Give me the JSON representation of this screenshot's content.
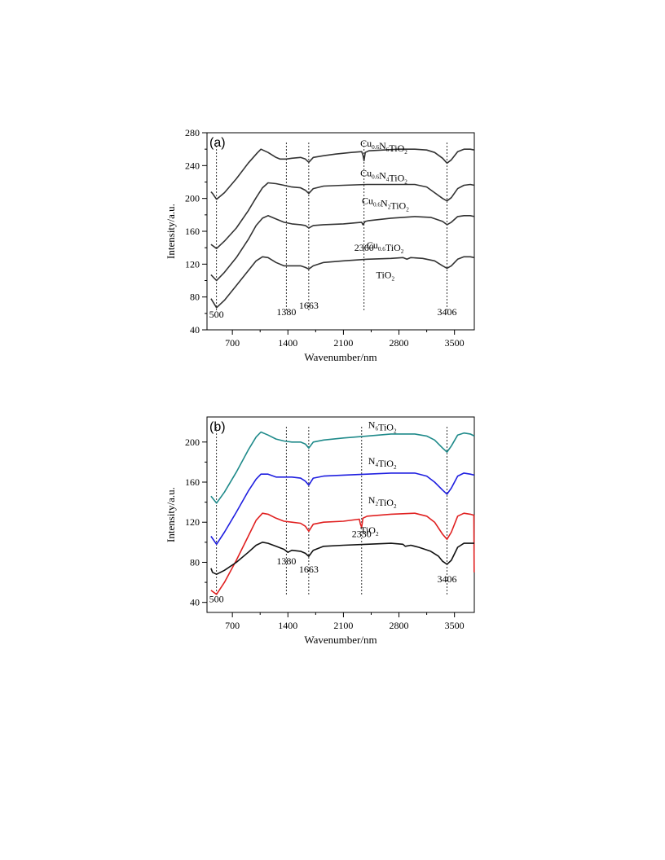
{
  "chart_data": [
    {
      "type": "line",
      "panel_label": "(a)",
      "xlabel": "Wavenumber/nm",
      "ylabel": "Intensity/a.u.",
      "xlim": [
        380,
        3750
      ],
      "ylim": [
        40,
        280
      ],
      "xticks": [
        700,
        1400,
        2100,
        2800,
        3500
      ],
      "yticks": [
        40,
        80,
        120,
        160,
        200,
        240,
        280
      ],
      "grid": false,
      "line_color": "#333333",
      "reference_lines": [
        500,
        1380,
        1663,
        2360,
        3406
      ],
      "peak_labels": [
        {
          "text": "500",
          "x": 500,
          "y": 55
        },
        {
          "text": "1380",
          "x": 1380,
          "y": 58
        },
        {
          "text": "1663",
          "x": 1663,
          "y": 66
        },
        {
          "text": "2360",
          "x": 2360,
          "y": 136
        },
        {
          "text": "3406",
          "x": 3406,
          "y": 58
        }
      ],
      "series": [
        {
          "name_parts": [
            [
              "Cu",
              ""
            ],
            [
              "0.6",
              "sub"
            ],
            [
              "N",
              ""
            ],
            [
              "6",
              "sub"
            ],
            [
              "TiO",
              ""
            ],
            [
              "2",
              "sub"
            ]
          ],
          "label_x": 2600,
          "label_y": 263,
          "x": [
            430,
            450,
            500,
            600,
            750,
            900,
            1010,
            1060,
            1150,
            1250,
            1300,
            1380,
            1450,
            1560,
            1620,
            1663,
            1720,
            1850,
            2000,
            2200,
            2330,
            2345,
            2360,
            2375,
            2420,
            2600,
            2800,
            2900,
            3000,
            3150,
            3250,
            3350,
            3406,
            3460,
            3540,
            3620,
            3700,
            3750
          ],
          "y": [
            208,
            206,
            199,
            207,
            224,
            243,
            255,
            260,
            256,
            250,
            248,
            248,
            249,
            250,
            248,
            244,
            250,
            252,
            254,
            256,
            257,
            253,
            246,
            256,
            258,
            259,
            260,
            260,
            260,
            259,
            256,
            249,
            243,
            247,
            257,
            260,
            260,
            259
          ]
        },
        {
          "name_parts": [
            [
              "Cu",
              ""
            ],
            [
              "0.6",
              "sub"
            ],
            [
              "N",
              ""
            ],
            [
              "4",
              "sub"
            ],
            [
              "TiO",
              ""
            ],
            [
              "2",
              "sub"
            ]
          ],
          "label_x": 2600,
          "label_y": 227,
          "x": [
            430,
            500,
            600,
            750,
            900,
            1000,
            1080,
            1150,
            1250,
            1350,
            1450,
            1560,
            1620,
            1663,
            1720,
            1850,
            2100,
            2400,
            2700,
            3000,
            3150,
            3250,
            3350,
            3406,
            3460,
            3540,
            3620,
            3700,
            3750
          ],
          "y": [
            144,
            139,
            148,
            164,
            185,
            201,
            213,
            219,
            218,
            216,
            214,
            213,
            210,
            206,
            212,
            215,
            216,
            217,
            217,
            217,
            214,
            207,
            200,
            197,
            201,
            212,
            216,
            217,
            216
          ]
        },
        {
          "name_parts": [
            [
              "Cu",
              ""
            ],
            [
              "0.6",
              "sub"
            ],
            [
              "N",
              ""
            ],
            [
              "2",
              "sub"
            ],
            [
              "TiO",
              ""
            ],
            [
              "2",
              "sub"
            ]
          ],
          "label_x": 2620,
          "label_y": 193,
          "x": [
            430,
            500,
            600,
            750,
            900,
            1000,
            1080,
            1150,
            1250,
            1350,
            1450,
            1560,
            1620,
            1663,
            1720,
            1850,
            2100,
            2330,
            2345,
            2360,
            2375,
            2420,
            2700,
            3000,
            3200,
            3350,
            3406,
            3460,
            3540,
            3620,
            3700,
            3750
          ],
          "y": [
            107,
            100,
            110,
            128,
            150,
            167,
            176,
            179,
            175,
            171,
            169,
            168,
            167,
            164,
            167,
            168,
            169,
            171,
            168,
            170,
            172,
            173,
            176,
            178,
            177,
            172,
            168,
            171,
            178,
            179,
            179,
            178
          ]
        },
        {
          "name_parts": [
            [
              "Cu",
              ""
            ],
            [
              "0.6",
              "sub"
            ],
            [
              "TiO",
              ""
            ],
            [
              "2",
              "sub"
            ]
          ],
          "label_x": 2680,
          "label_y": 139,
          "x": [
            430,
            500,
            600,
            750,
            900,
            1000,
            1080,
            1150,
            1250,
            1350,
            1450,
            1560,
            1620,
            1663,
            1720,
            1850,
            2100,
            2400,
            2700,
            2850,
            2900,
            2950,
            3100,
            3250,
            3350,
            3406,
            3460,
            3540,
            3620,
            3700,
            3750
          ],
          "y": [
            78,
            67,
            76,
            94,
            112,
            124,
            129,
            128,
            122,
            118,
            118,
            118,
            116,
            114,
            118,
            122,
            124,
            126,
            127,
            128,
            126,
            128,
            127,
            124,
            118,
            115,
            118,
            126,
            129,
            129,
            128
          ]
        },
        {
          "name_parts": [
            [
              "TiO",
              ""
            ],
            [
              "2",
              "sub"
            ]
          ],
          "label_x": 2800,
          "label_y": 103,
          "x": [],
          "y": []
        }
      ]
    },
    {
      "type": "line",
      "panel_label": "(b)",
      "xlabel": "Wavenumber/nm",
      "ylabel": "Intensity/a.u.",
      "xlim": [
        380,
        3750
      ],
      "ylim": [
        30,
        225
      ],
      "xticks": [
        700,
        1400,
        2100,
        2800,
        3500
      ],
      "yticks": [
        40,
        80,
        120,
        160,
        200
      ],
      "grid": false,
      "reference_lines": [
        500,
        1380,
        1663,
        2330,
        3406
      ],
      "peak_labels": [
        {
          "text": "500",
          "x": 500,
          "y": 40
        },
        {
          "text": "1380",
          "x": 1380,
          "y": 78
        },
        {
          "text": "1663",
          "x": 1663,
          "y": 70
        },
        {
          "text": "2330",
          "x": 2330,
          "y": 105
        },
        {
          "text": "3406",
          "x": 3406,
          "y": 60
        }
      ],
      "series": [
        {
          "name_parts": [
            [
              "N",
              ""
            ],
            [
              "6",
              "sub"
            ],
            [
              "TiO",
              ""
            ],
            [
              "2",
              "sub"
            ]
          ],
          "label_x": 2700,
          "label_y": 214,
          "color": "#1f8a8a",
          "x": [
            430,
            500,
            600,
            750,
            900,
            1000,
            1060,
            1150,
            1250,
            1350,
            1450,
            1560,
            1620,
            1663,
            1720,
            1850,
            2100,
            2400,
            2700,
            3000,
            3150,
            3250,
            3350,
            3406,
            3460,
            3540,
            3620,
            3700,
            3750
          ],
          "y": [
            146,
            139,
            150,
            170,
            192,
            205,
            210,
            207,
            203,
            201,
            200,
            200,
            198,
            194,
            200,
            202,
            204,
            206,
            208,
            208,
            206,
            202,
            194,
            190,
            196,
            207,
            209,
            208,
            206
          ]
        },
        {
          "name_parts": [
            [
              "N",
              ""
            ],
            [
              "4",
              "sub"
            ],
            [
              "TiO",
              ""
            ],
            [
              "2",
              "sub"
            ]
          ],
          "label_x": 2700,
          "label_y": 178,
          "color": "#1f1fe0",
          "x": [
            430,
            500,
            600,
            750,
            900,
            1000,
            1060,
            1150,
            1250,
            1350,
            1450,
            1560,
            1620,
            1663,
            1720,
            1850,
            2100,
            2400,
            2700,
            3000,
            3150,
            3250,
            3350,
            3406,
            3460,
            3540,
            3620,
            3700,
            3750
          ],
          "y": [
            106,
            98,
            110,
            130,
            151,
            163,
            168,
            168,
            165,
            165,
            165,
            164,
            161,
            157,
            164,
            166,
            167,
            168,
            169,
            169,
            166,
            160,
            152,
            148,
            154,
            166,
            169,
            168,
            167
          ]
        },
        {
          "name_parts": [
            [
              "N",
              ""
            ],
            [
              "2",
              "sub"
            ],
            [
              "TiO",
              ""
            ],
            [
              "2",
              "sub"
            ]
          ],
          "label_x": 2700,
          "label_y": 139,
          "color": "#e02020",
          "x": [
            430,
            500,
            600,
            750,
            900,
            1000,
            1080,
            1150,
            1250,
            1350,
            1450,
            1560,
            1620,
            1663,
            1720,
            1850,
            2100,
            2300,
            2315,
            2330,
            2345,
            2400,
            2700,
            3000,
            3150,
            3250,
            3350,
            3406,
            3460,
            3540,
            3620,
            3700,
            3745,
            3748
          ],
          "y": [
            52,
            48,
            60,
            82,
            106,
            122,
            129,
            128,
            124,
            121,
            120,
            119,
            116,
            111,
            118,
            120,
            121,
            123,
            118,
            115,
            124,
            126,
            128,
            129,
            126,
            120,
            108,
            103,
            110,
            126,
            129,
            128,
            127,
            70
          ]
        },
        {
          "name_parts": [
            [
              "TiO",
              ""
            ],
            [
              "2",
              "sub"
            ]
          ],
          "label_x": 2600,
          "label_y": 109,
          "color": "#111111",
          "x": [
            430,
            450,
            500,
            600,
            750,
            900,
            1000,
            1080,
            1150,
            1250,
            1350,
            1400,
            1450,
            1560,
            1620,
            1663,
            1720,
            1850,
            2100,
            2400,
            2700,
            2850,
            2880,
            2950,
            3050,
            3200,
            3300,
            3350,
            3406,
            3460,
            3540,
            3620,
            3700,
            3750
          ],
          "y": [
            74,
            70,
            68,
            72,
            80,
            90,
            97,
            100,
            99,
            96,
            93,
            90,
            92,
            91,
            89,
            86,
            92,
            96,
            97,
            98,
            99,
            98,
            96,
            97,
            95,
            91,
            86,
            81,
            78,
            82,
            95,
            99,
            99,
            99
          ]
        }
      ]
    }
  ]
}
